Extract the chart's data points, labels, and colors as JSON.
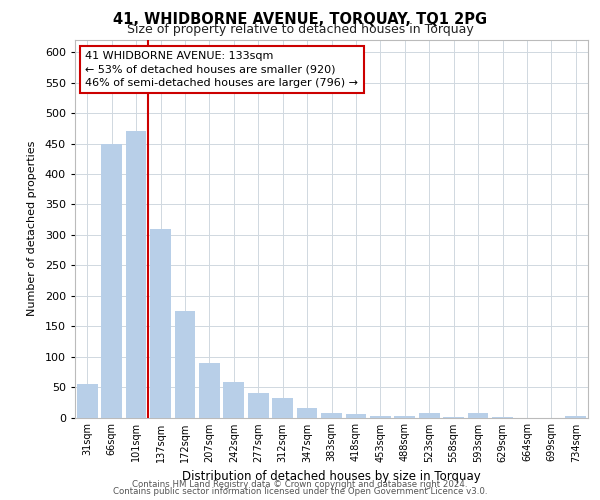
{
  "title1": "41, WHIDBORNE AVENUE, TORQUAY, TQ1 2PG",
  "title2": "Size of property relative to detached houses in Torquay",
  "xlabel": "Distribution of detached houses by size in Torquay",
  "ylabel": "Number of detached properties",
  "annotation_line1": "41 WHIDBORNE AVENUE: 133sqm",
  "annotation_line2": "← 53% of detached houses are smaller (920)",
  "annotation_line3": "46% of semi-detached houses are larger (796) →",
  "bar_color": "#b8cfe8",
  "vline_color": "#cc0000",
  "categories": [
    "31sqm",
    "66sqm",
    "101sqm",
    "137sqm",
    "172sqm",
    "207sqm",
    "242sqm",
    "277sqm",
    "312sqm",
    "347sqm",
    "383sqm",
    "418sqm",
    "453sqm",
    "488sqm",
    "523sqm",
    "558sqm",
    "593sqm",
    "629sqm",
    "664sqm",
    "699sqm",
    "734sqm"
  ],
  "values": [
    55,
    450,
    470,
    310,
    175,
    90,
    58,
    40,
    32,
    15,
    8,
    5,
    2,
    2,
    8,
    1,
    8,
    1,
    0,
    0,
    2
  ],
  "vline_index": 3,
  "ylim": [
    0,
    620
  ],
  "yticks": [
    0,
    50,
    100,
    150,
    200,
    250,
    300,
    350,
    400,
    450,
    500,
    550,
    600
  ],
  "footer1": "Contains HM Land Registry data © Crown copyright and database right 2024.",
  "footer2": "Contains public sector information licensed under the Open Government Licence v3.0.",
  "background_color": "#ffffff",
  "plot_bg_color": "#ffffff",
  "grid_color": "#d0d8e0"
}
